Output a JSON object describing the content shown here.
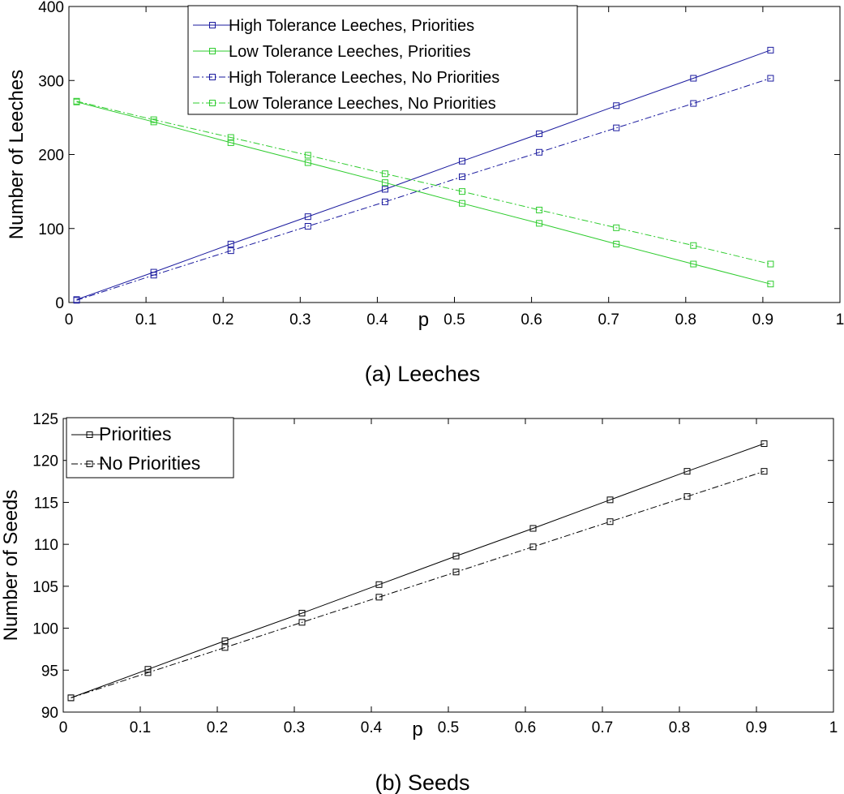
{
  "chart_data": [
    {
      "type": "line",
      "caption": "(a)  Leeches",
      "xlabel": "p",
      "ylabel": "Number of Leeches",
      "xlim": [
        0,
        1
      ],
      "ylim": [
        0,
        400
      ],
      "xticks": [
        "0",
        "0.1",
        "0.2",
        "0.3",
        "0.4",
        "0.5",
        "0.6",
        "0.7",
        "0.8",
        "0.9",
        "1"
      ],
      "yticks": [
        "0",
        "100",
        "200",
        "300",
        "400"
      ],
      "x": [
        0.01,
        0.11,
        0.21,
        0.31,
        0.41,
        0.51,
        0.61,
        0.71,
        0.81,
        0.91
      ],
      "legend_position": "top-center",
      "series": [
        {
          "name": "High Tolerance Leeches, Priorities",
          "color": "#1a1a9e",
          "style": "solid",
          "values": [
            4,
            41,
            79,
            116,
            153,
            191,
            228,
            266,
            303,
            341
          ]
        },
        {
          "name": "Low Tolerance Leeches, Priorities",
          "color": "#2ecc2e",
          "style": "solid",
          "values": [
            271,
            244,
            216,
            189,
            162,
            134,
            107,
            79,
            52,
            25
          ]
        },
        {
          "name": "High Tolerance Leeches, No Priorities",
          "color": "#1a1a9e",
          "style": "dashdot",
          "values": [
            3,
            37,
            70,
            103,
            136,
            170,
            203,
            236,
            269,
            303
          ]
        },
        {
          "name": "Low Tolerance Leeches, No Priorities",
          "color": "#2ecc2e",
          "style": "dashdot",
          "values": [
            272,
            247,
            223,
            199,
            174,
            150,
            125,
            101,
            77,
            52
          ]
        }
      ]
    },
    {
      "type": "line",
      "caption": "(b)  Seeds",
      "xlabel": "p",
      "ylabel": "Number of Seeds",
      "xlim": [
        0,
        1
      ],
      "ylim": [
        90,
        125
      ],
      "xticks": [
        "0",
        "0.1",
        "0.2",
        "0.3",
        "0.4",
        "0.5",
        "0.6",
        "0.7",
        "0.8",
        "0.9",
        "1"
      ],
      "yticks": [
        "90",
        "95",
        "100",
        "105",
        "110",
        "115",
        "120",
        "125"
      ],
      "x": [
        0.01,
        0.11,
        0.21,
        0.31,
        0.41,
        0.51,
        0.61,
        0.71,
        0.81,
        0.91
      ],
      "legend_position": "top-left",
      "series": [
        {
          "name": "Priorities",
          "color": "#000000",
          "style": "solid",
          "values": [
            91.7,
            95.1,
            98.5,
            101.8,
            105.2,
            108.6,
            111.9,
            115.3,
            118.7,
            122.0
          ]
        },
        {
          "name": "No Priorities",
          "color": "#000000",
          "style": "dashdot",
          "values": [
            91.7,
            94.7,
            97.7,
            100.7,
            103.7,
            106.7,
            109.7,
            112.7,
            115.7,
            118.7
          ]
        }
      ]
    }
  ]
}
